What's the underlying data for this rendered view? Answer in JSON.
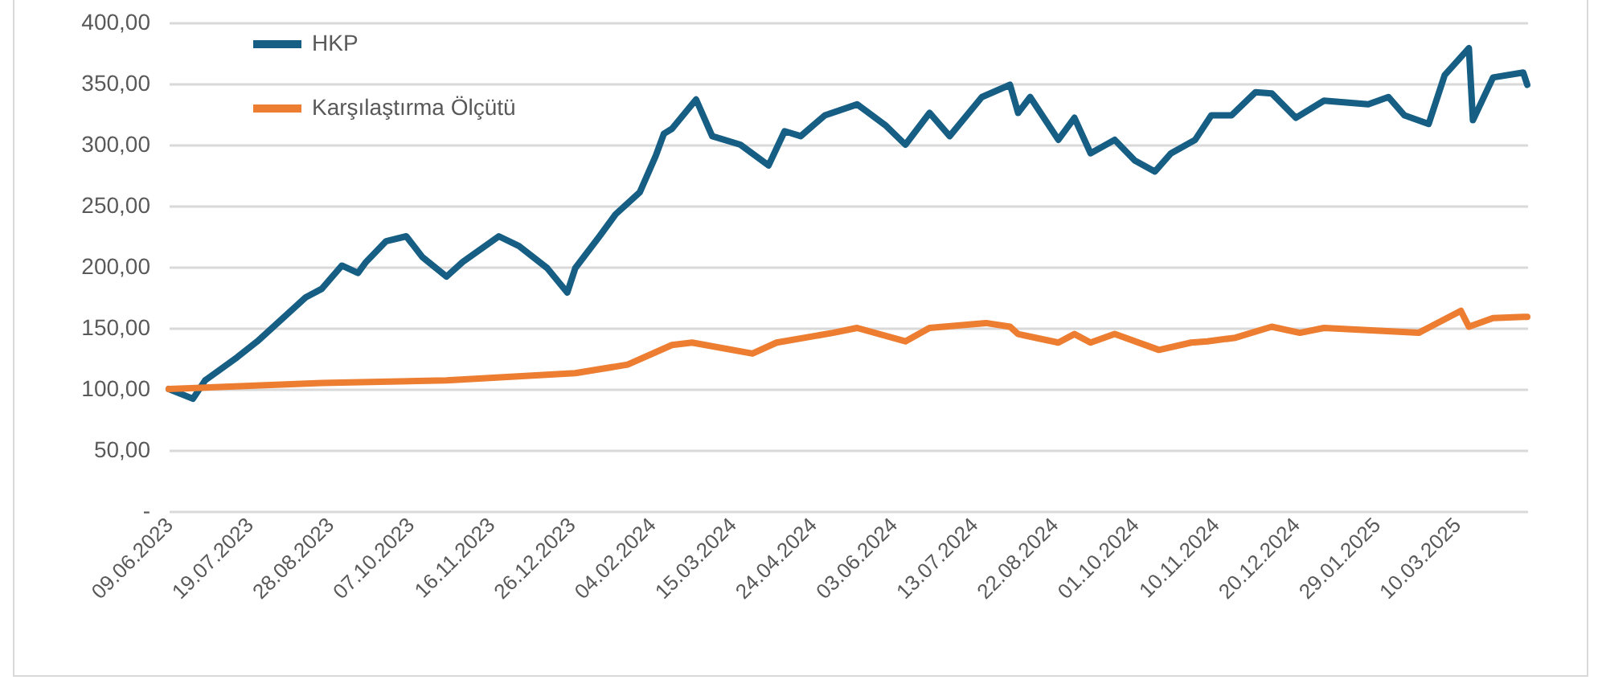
{
  "chart_data": {
    "type": "line",
    "xlim": [
      "2023-06-09",
      "2025-04-14"
    ],
    "xticks": [
      {
        "value": "2023-06-09",
        "label": "09.06.2023"
      },
      {
        "value": "2023-07-19",
        "label": "19.07.2023"
      },
      {
        "value": "2023-08-28",
        "label": "28.08.2023"
      },
      {
        "value": "2023-10-07",
        "label": "07.10.2023"
      },
      {
        "value": "2023-11-16",
        "label": "16.11.2023"
      },
      {
        "value": "2023-12-26",
        "label": "26.12.2023"
      },
      {
        "value": "2024-02-04",
        "label": "04.02.2024"
      },
      {
        "value": "2024-03-15",
        "label": "15.03.2024"
      },
      {
        "value": "2024-04-24",
        "label": "24.04.2024"
      },
      {
        "value": "2024-06-03",
        "label": "03.06.2024"
      },
      {
        "value": "2024-07-13",
        "label": "13.07.2024"
      },
      {
        "value": "2024-08-22",
        "label": "22.08.2024"
      },
      {
        "value": "2024-10-01",
        "label": "01.10.2024"
      },
      {
        "value": "2024-11-10",
        "label": "10.11.2024"
      },
      {
        "value": "2024-12-20",
        "label": "20.12.2024"
      },
      {
        "value": "2025-01-29",
        "label": "29.01.2025"
      },
      {
        "value": "2025-03-10",
        "label": "10.03.2025"
      }
    ],
    "ylim": [
      0,
      400
    ],
    "yticks": [
      {
        "value": 0,
        "label": "-"
      },
      {
        "value": 50,
        "label": "50,00"
      },
      {
        "value": 100,
        "label": "100,00"
      },
      {
        "value": 150,
        "label": "150,00"
      },
      {
        "value": 200,
        "label": "200,00"
      },
      {
        "value": 250,
        "label": "250,00"
      },
      {
        "value": 300,
        "label": "300,00"
      },
      {
        "value": 350,
        "label": "350,00"
      },
      {
        "value": 400,
        "label": "400,00"
      }
    ],
    "grid": "y",
    "legend": "top left",
    "line_style": "solid",
    "series": [
      {
        "name": "HKP",
        "color": "#165e83",
        "x": [
          "2023-06-09",
          "2023-06-21",
          "2023-06-27",
          "2023-07-13",
          "2023-07-23",
          "2023-08-16",
          "2023-08-24",
          "2023-09-03",
          "2023-09-11",
          "2023-09-15",
          "2023-09-25",
          "2023-10-05",
          "2023-10-13",
          "2023-10-25",
          "2023-11-02",
          "2023-11-20",
          "2023-11-30",
          "2023-12-14",
          "2023-12-24",
          "2023-12-28",
          "2024-01-09",
          "2024-01-17",
          "2024-01-29",
          "2024-02-06",
          "2024-02-10",
          "2024-02-14",
          "2024-02-26",
          "2024-03-05",
          "2024-03-19",
          "2024-04-02",
          "2024-04-10",
          "2024-04-18",
          "2024-04-30",
          "2024-05-16",
          "2024-05-30",
          "2024-06-09",
          "2024-06-21",
          "2024-07-01",
          "2024-07-17",
          "2024-07-31",
          "2024-08-04",
          "2024-08-10",
          "2024-08-24",
          "2024-09-01",
          "2024-09-09",
          "2024-09-21",
          "2024-10-01",
          "2024-10-11",
          "2024-10-19",
          "2024-10-31",
          "2024-11-08",
          "2024-11-18",
          "2024-11-30",
          "2024-12-08",
          "2024-12-20",
          "2025-01-03",
          "2025-01-25",
          "2025-02-04",
          "2025-02-12",
          "2025-02-24",
          "2025-03-04",
          "2025-03-16",
          "2025-03-18",
          "2025-03-28",
          "2025-04-12",
          "2025-04-14"
        ],
        "values": [
          100,
          92,
          107,
          126,
          139,
          175,
          182,
          201,
          195,
          204,
          221,
          225,
          208,
          192,
          204,
          225,
          217,
          199,
          179,
          199,
          225,
          243,
          261,
          291,
          309,
          313,
          337,
          307,
          300,
          283,
          311,
          307,
          324,
          333,
          316,
          300,
          326,
          307,
          339,
          349,
          326,
          339,
          304,
          322,
          293,
          304,
          287,
          278,
          293,
          304,
          324,
          324,
          343,
          342,
          322,
          336,
          333,
          339,
          324,
          317,
          357,
          379,
          320,
          355,
          359,
          349
        ]
      },
      {
        "name": "Karşılaştırma Ölçütü",
        "color": "#ed7d31",
        "x": [
          "2023-06-09",
          "2023-08-24",
          "2023-10-25",
          "2023-12-28",
          "2024-01-23",
          "2024-02-14",
          "2024-02-24",
          "2024-03-25",
          "2024-04-06",
          "2024-05-04",
          "2024-05-16",
          "2024-06-09",
          "2024-06-21",
          "2024-07-19",
          "2024-07-31",
          "2024-08-04",
          "2024-08-24",
          "2024-09-01",
          "2024-09-09",
          "2024-09-21",
          "2024-10-13",
          "2024-10-29",
          "2024-11-06",
          "2024-11-20",
          "2024-12-08",
          "2024-12-22",
          "2025-01-03",
          "2025-02-19",
          "2025-03-12",
          "2025-03-16",
          "2025-03-28",
          "2025-04-12",
          "2025-04-14"
        ],
        "values": [
          100,
          105,
          107,
          113,
          120,
          136,
          138,
          129,
          138,
          146,
          150,
          139,
          150,
          154,
          151,
          145,
          138,
          145,
          138,
          145,
          132,
          138,
          139,
          142,
          151,
          146,
          150,
          146,
          164,
          151,
          158,
          159,
          159
        ]
      }
    ]
  }
}
